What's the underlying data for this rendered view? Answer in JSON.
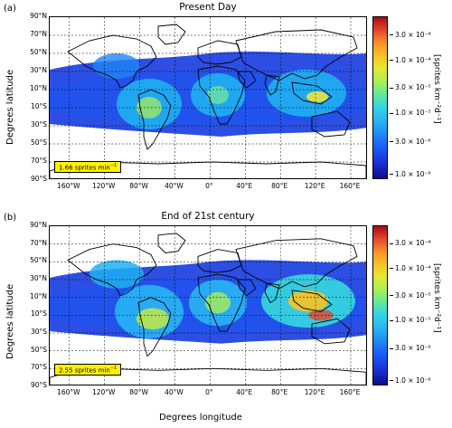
{
  "panels": [
    {
      "label": "(a)",
      "title": "Present Day",
      "ylabel": "Degrees latitude",
      "rate_text": "1.66 sprites min",
      "rate_sup": "−1"
    },
    {
      "label": "(b)",
      "title": "End of 21st century",
      "ylabel": "Degrees latitude",
      "rate_text": "2.55 sprites min",
      "rate_sup": "−1"
    }
  ],
  "xlabel": "Degrees longitude",
  "lat_ticks": [
    "90°N",
    "70°N",
    "50°N",
    "30°N",
    "10°N",
    "10°S",
    "30°S",
    "50°S",
    "70°S",
    "90°S"
  ],
  "lon_ticks": [
    "160°W",
    "120°W",
    "80°W",
    "40°W",
    "0°",
    "40°E",
    "80°E",
    "120°E",
    "160°E"
  ],
  "colorbar": {
    "label": "[sprites km⁻²d⁻¹]",
    "ticks": [
      "3.0 × 10⁻⁴",
      "1.0 × 10⁻⁴",
      "3.0 × 10⁻⁵",
      "1.0 × 10⁻⁵",
      "3.0 × 10⁻⁶",
      "1.0 × 10⁻⁶"
    ]
  },
  "colors": {
    "ocean_blue": "#1a3fe0",
    "land_green": "#35c9a0",
    "hotspot": "#f0e23a",
    "rate_box": "#fff200"
  }
}
